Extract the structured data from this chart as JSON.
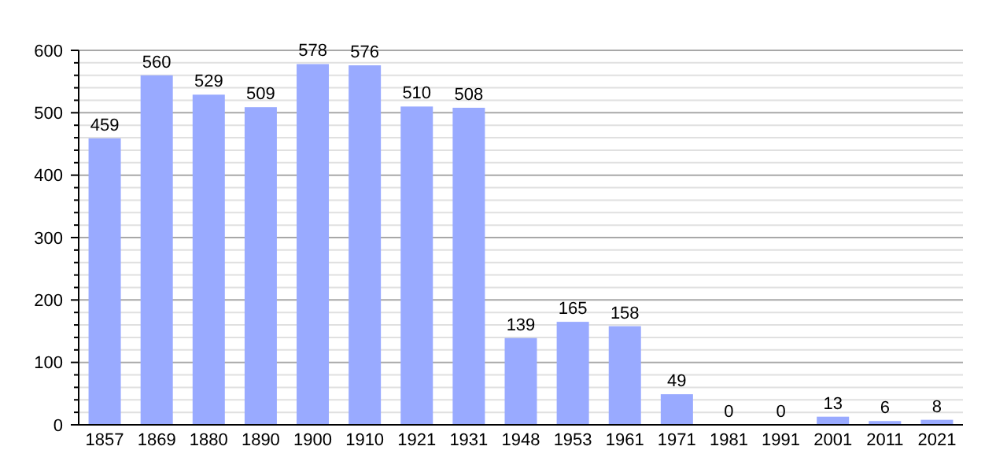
{
  "chart_data": {
    "type": "bar",
    "categories": [
      "1857",
      "1869",
      "1880",
      "1890",
      "1900",
      "1910",
      "1921",
      "1931",
      "1948",
      "1953",
      "1961",
      "1971",
      "1981",
      "1991",
      "2001",
      "2011",
      "2021"
    ],
    "values": [
      459,
      560,
      529,
      509,
      578,
      576,
      510,
      508,
      139,
      165,
      158,
      49,
      0,
      0,
      13,
      6,
      8
    ],
    "color": "#99aaff",
    "data_labels": true,
    "grid": true,
    "ylim": [
      0,
      600
    ],
    "yticks": [
      0,
      {
        "value": 20,
        "label": null
      },
      {
        "value": 40,
        "label": null
      },
      {
        "value": 60,
        "label": null
      },
      {
        "value": 80,
        "label": null
      },
      100,
      {
        "value": 120,
        "label": null
      },
      {
        "value": 140,
        "label": null
      },
      {
        "value": 160,
        "label": null
      },
      {
        "value": 180,
        "label": null
      },
      200,
      {
        "value": 220,
        "label": null
      },
      {
        "value": 240,
        "label": null
      },
      {
        "value": 260,
        "label": null
      },
      {
        "value": 280,
        "label": null
      },
      300,
      {
        "value": 320,
        "label": null
      },
      {
        "value": 340,
        "label": null
      },
      {
        "value": 360,
        "label": null
      },
      {
        "value": 380,
        "label": null
      },
      400,
      {
        "value": 420,
        "label": null
      },
      {
        "value": 440,
        "label": null
      },
      {
        "value": 460,
        "label": null
      },
      {
        "value": 480,
        "label": null
      },
      500,
      {
        "value": 520,
        "label": null
      },
      {
        "value": 540,
        "label": null
      },
      {
        "value": 560,
        "label": null
      },
      {
        "value": 580,
        "label": null
      },
      600
    ]
  }
}
